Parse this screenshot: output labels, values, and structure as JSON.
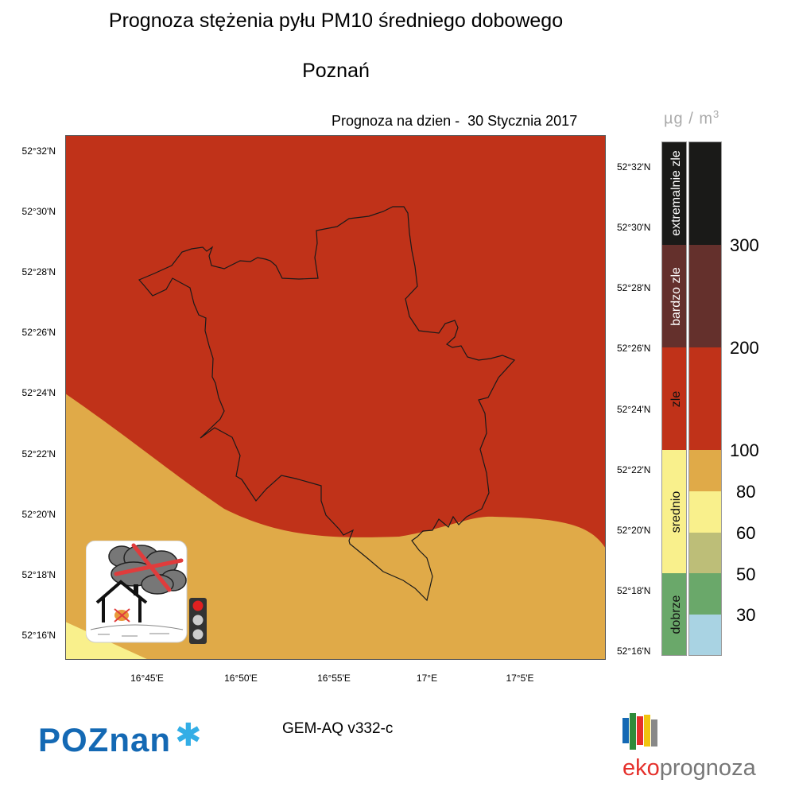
{
  "title": "Prognoza stężenia pyłu PM10 średniego dobowego",
  "subtitle": "Poznań",
  "forecast_date": "Prognoza na dzien -  30 Stycznia 2017",
  "unit": {
    "base": "µg / m",
    "exp": "3"
  },
  "lat_labels": [
    "52°32'N",
    "52°30'N",
    "52°28'N",
    "52°26'N",
    "52°24'N",
    "52°22'N",
    "52°20'N",
    "52°18'N",
    "52°16'N"
  ],
  "lon_labels": [
    "16°45'E",
    "16°50'E",
    "16°55'E",
    "17°E",
    "17°5'E"
  ],
  "categories": [
    {
      "label": "extremalnie zle",
      "color": "#1a1a18"
    },
    {
      "label": "bardzo zle",
      "color": "#64302c"
    },
    {
      "label": "zle",
      "color": "#c03219"
    },
    {
      "label": "srednio",
      "color": "#f9f08c"
    },
    {
      "label": "dobrze",
      "color": "#6aa86a"
    }
  ],
  "scale_colors": [
    "#1a1a18",
    "#64302c",
    "#c03219",
    "#e0aa48",
    "#f9f08c",
    "#bdbe78",
    "#6aa86a",
    "#a9d3e3"
  ],
  "scale_values": [
    "300",
    "200",
    "100",
    "80",
    "60",
    "50",
    "30"
  ],
  "map_colors": {
    "high": "#c03219",
    "medium": "#e0aa48",
    "low": "#f9f08c"
  },
  "model": "GEM-AQ v332-c",
  "logo_left": "POZnan",
  "logo_right": {
    "a": "eko",
    "b": "prognoza"
  }
}
